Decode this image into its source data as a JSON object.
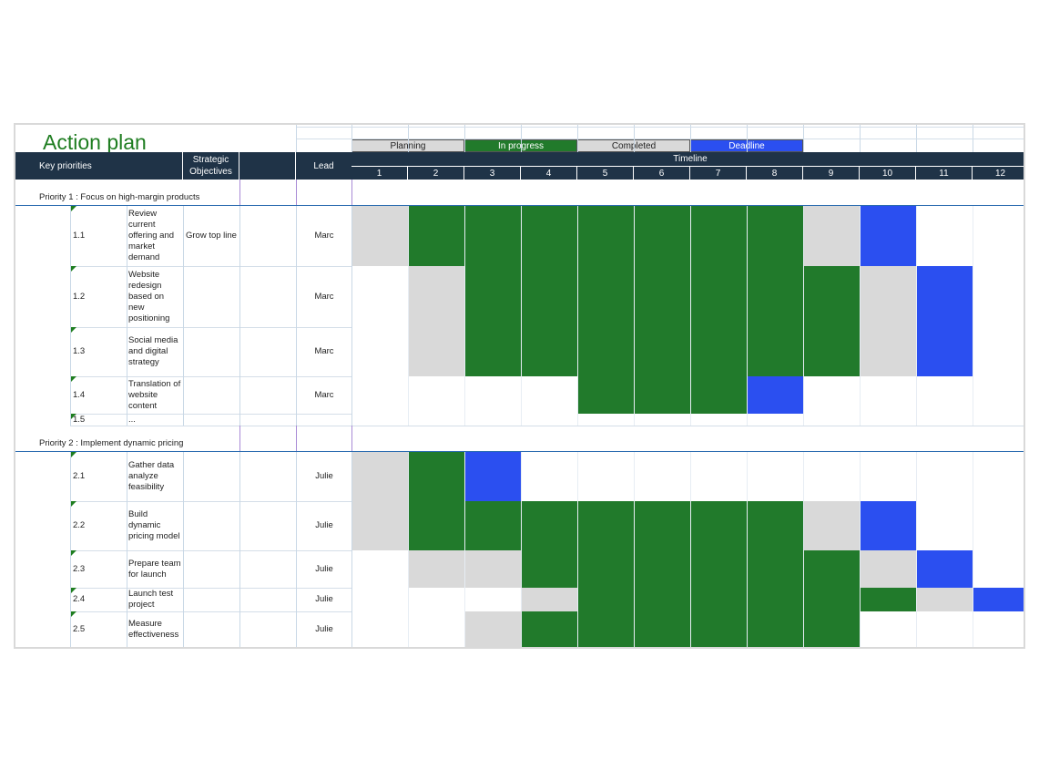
{
  "title": "Action plan",
  "legend": [
    {
      "label": "Planning",
      "color": "#d9d9d9",
      "text_color": "#1f1f1f"
    },
    {
      "label": "In progress",
      "color": "#217a2b",
      "text_color": "#ffffff"
    },
    {
      "label": "Completed",
      "color": "#d9d9d9",
      "text_color": "#1f1f1f"
    },
    {
      "label": "Deadline",
      "color": "#2b4ff0",
      "text_color": "#ffffff"
    }
  ],
  "headers": {
    "key_priorities": "Key priorities",
    "strategic_objectives": "Strategic Objectives",
    "lead": "Lead",
    "timeline": "Timeline",
    "periods": [
      "1",
      "2",
      "3",
      "4",
      "5",
      "6",
      "7",
      "8",
      "9",
      "10",
      "11",
      "12"
    ]
  },
  "status_colors": {
    "P": "#d9d9d9",
    "G": "#217a2b",
    "B": "#2b4ff0",
    "E": "#ffffff"
  },
  "sections": [
    {
      "title": "Priority 1 : Focus on high-margin products",
      "tasks": [
        {
          "id": "1.1",
          "text": "Review current offering and market demand",
          "objective": "Grow top line",
          "lead": "Marc",
          "cells": [
            "P",
            "G",
            "G",
            "G",
            "G",
            "G",
            "G",
            "G",
            "P",
            "B",
            "E",
            "E"
          ]
        },
        {
          "id": "1.2",
          "text": "Website redesign based on new positioning",
          "objective": "",
          "lead": "Marc",
          "cells": [
            "E",
            "P",
            "G",
            "G",
            "G",
            "G",
            "G",
            "G",
            "G",
            "P",
            "B",
            "E"
          ]
        },
        {
          "id": "1.3",
          "text": "Social media and digital strategy",
          "objective": "",
          "lead": "Marc",
          "cells": [
            "E",
            "P",
            "G",
            "G",
            "G",
            "G",
            "G",
            "G",
            "G",
            "P",
            "B",
            "E"
          ]
        },
        {
          "id": "1.4",
          "text": "Translation of website content",
          "objective": "",
          "lead": "Marc",
          "cells": [
            "E",
            "E",
            "E",
            "E",
            "G",
            "G",
            "G",
            "B",
            "E",
            "E",
            "E",
            "E"
          ]
        },
        {
          "id": "1.5",
          "text": "...",
          "objective": "",
          "lead": "",
          "cells": [
            "E",
            "E",
            "E",
            "E",
            "E",
            "E",
            "E",
            "E",
            "E",
            "E",
            "E",
            "E"
          ]
        }
      ]
    },
    {
      "title": "Priority 2 : Implement dynamic pricing",
      "tasks": [
        {
          "id": "2.1",
          "text": "Gather data analyze feasibility",
          "objective": "",
          "lead": "Julie",
          "cells": [
            "P",
            "G",
            "B",
            "E",
            "E",
            "E",
            "E",
            "E",
            "E",
            "E",
            "E",
            "E"
          ]
        },
        {
          "id": "2.2",
          "text": "Build dynamic pricing model",
          "objective": "",
          "lead": "Julie",
          "cells": [
            "P",
            "G",
            "G",
            "G",
            "G",
            "G",
            "G",
            "G",
            "P",
            "B",
            "E",
            "E"
          ]
        },
        {
          "id": "2.3",
          "text": "Prepare team for launch",
          "objective": "",
          "lead": "Julie",
          "cells": [
            "E",
            "P",
            "P",
            "G",
            "G",
            "G",
            "G",
            "G",
            "G",
            "P",
            "B",
            "E"
          ]
        },
        {
          "id": "2.4",
          "text": "Launch test project",
          "objective": "",
          "lead": "Julie",
          "cells": [
            "E",
            "E",
            "E",
            "P",
            "G",
            "G",
            "G",
            "G",
            "G",
            "G",
            "P",
            "B"
          ]
        },
        {
          "id": "2.5",
          "text": "Measure effectiveness",
          "objective": "",
          "lead": "Julie",
          "cells": [
            "E",
            "E",
            "P",
            "G",
            "G",
            "G",
            "G",
            "G",
            "G",
            "E",
            "E",
            "E"
          ]
        }
      ]
    }
  ]
}
